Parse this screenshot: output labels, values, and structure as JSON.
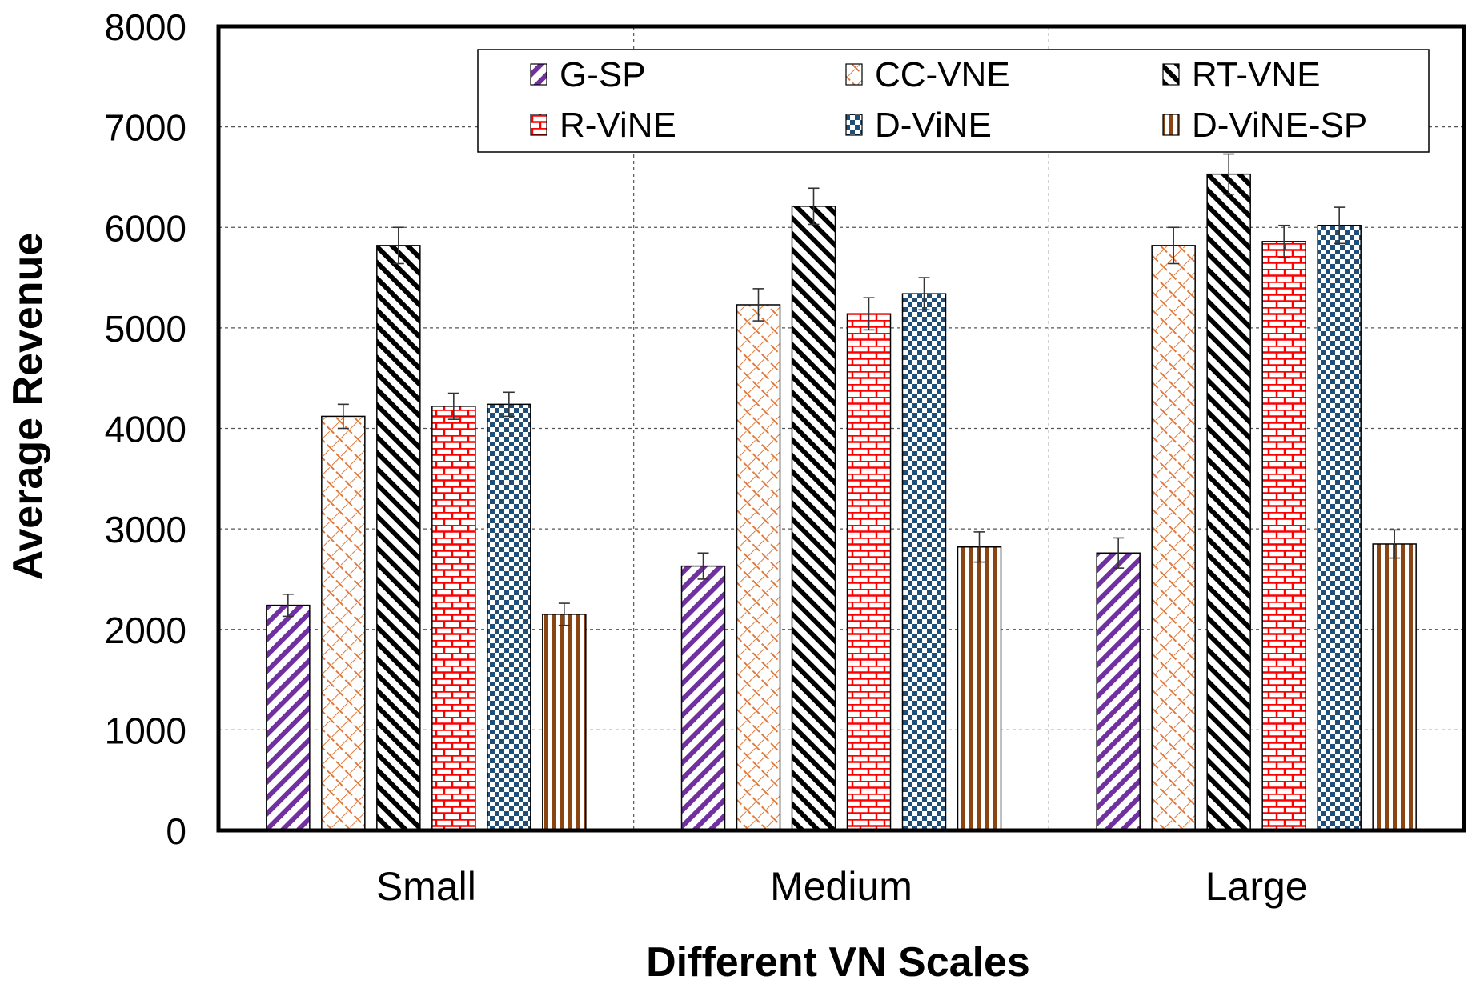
{
  "chart_data": {
    "type": "bar",
    "title": "",
    "xlabel": "Different VN Scales",
    "ylabel": "Average Revenue",
    "ylim": [
      0,
      8000
    ],
    "yticks": [
      "0",
      "1000",
      "2000",
      "3000",
      "4000",
      "5000",
      "6000",
      "7000",
      "8000"
    ],
    "categories": [
      "Small",
      "Medium",
      "Large"
    ],
    "grid": true,
    "legend_position": "top-right",
    "series": [
      {
        "name": "G-SP",
        "pattern": "diag-right",
        "color": "#7030a0",
        "values": [
          2240,
          2630,
          2760
        ],
        "errors": [
          110,
          130,
          150
        ]
      },
      {
        "name": "CC-VNE",
        "pattern": "crosshatch",
        "color": "#e07a3c",
        "values": [
          4120,
          5230,
          5820
        ],
        "errors": [
          120,
          160,
          180
        ]
      },
      {
        "name": "RT-VNE",
        "pattern": "diag-left",
        "color": "#000000",
        "values": [
          5820,
          6210,
          6530
        ],
        "errors": [
          180,
          180,
          200
        ]
      },
      {
        "name": "R-ViNE",
        "pattern": "brick",
        "color": "#ff0000",
        "values": [
          4220,
          5140,
          5860
        ],
        "errors": [
          130,
          160,
          160
        ]
      },
      {
        "name": "D-ViNE",
        "pattern": "checker",
        "color": "#1f4e79",
        "values": [
          4240,
          5340,
          6020
        ],
        "errors": [
          120,
          160,
          180
        ]
      },
      {
        "name": "D-ViNE-SP",
        "pattern": "vertical",
        "color": "#8b4513",
        "values": [
          2150,
          2820,
          2850
        ],
        "errors": [
          110,
          150,
          140
        ]
      }
    ]
  }
}
